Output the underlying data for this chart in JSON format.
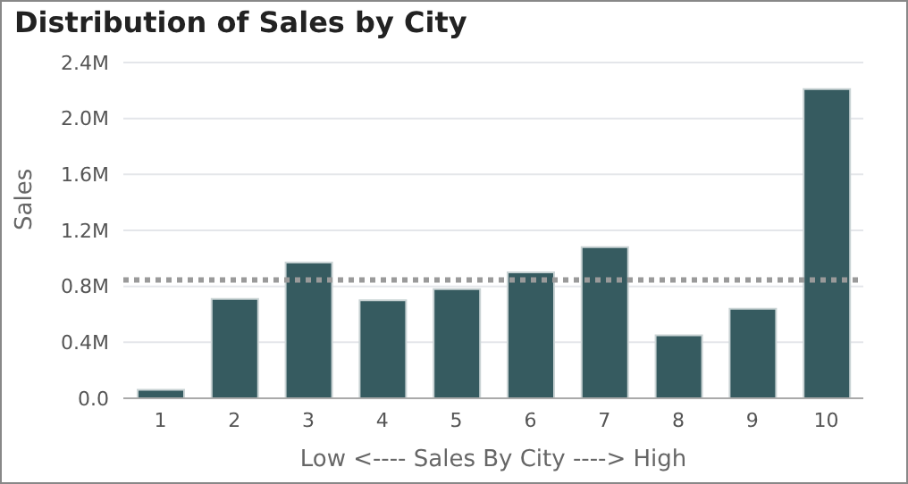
{
  "chart_data": {
    "type": "bar",
    "title": "Distribution of Sales by City",
    "xlabel": "Low <---- Sales By City ----> High",
    "ylabel": "Sales",
    "categories": [
      "1",
      "2",
      "3",
      "4",
      "5",
      "6",
      "7",
      "8",
      "9",
      "10"
    ],
    "values": [
      60000,
      710000,
      970000,
      700000,
      780000,
      900000,
      1080000,
      450000,
      640000,
      2210000
    ],
    "color": "#365b60",
    "ylim": [
      0,
      2400000
    ],
    "yticks": [
      {
        "value": 0,
        "label": "0.0"
      },
      {
        "value": 400000,
        "label": "0.4M"
      },
      {
        "value": 800000,
        "label": "0.8M"
      },
      {
        "value": 1200000,
        "label": "1.2M"
      },
      {
        "value": 1600000,
        "label": "1.6M"
      },
      {
        "value": 2000000,
        "label": "2.0M"
      },
      {
        "value": 2400000,
        "label": "2.4M"
      }
    ],
    "grid": "y",
    "ref_lines": [
      {
        "axis": "y",
        "value": 845000,
        "color": "#9a9a9a",
        "line_style": "dotted"
      }
    ]
  }
}
